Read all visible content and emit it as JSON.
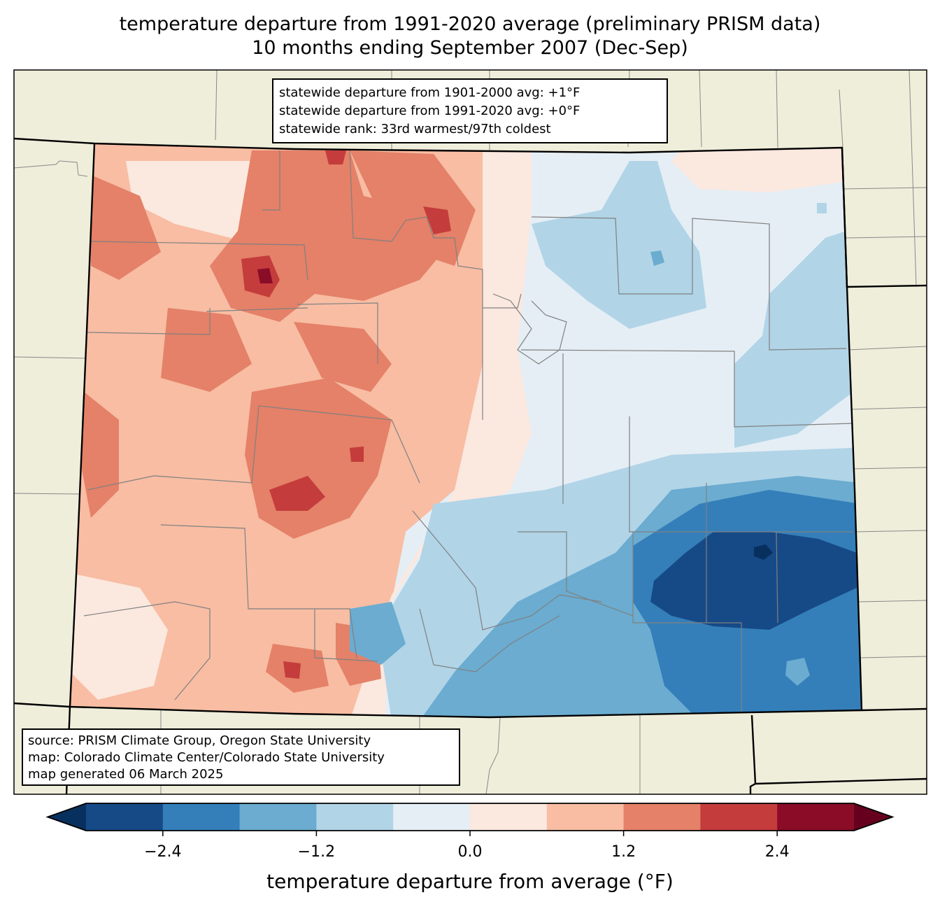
{
  "title": {
    "line1": "temperature departure from 1991-2020 average (preliminary PRISM data)",
    "line2": "10 months ending September 2007 (Dec-Sep)"
  },
  "stats_box": {
    "lines": [
      "statewide departure from 1901-2000 avg: +1°F",
      "statewide departure from 1991-2020 avg: +0°F",
      "statewide rank: 33rd warmest/97th coldest"
    ]
  },
  "source_box": {
    "lines": [
      "source: PRISM Climate Group, Oregon State University",
      "map: Colorado Climate Center/Colorado State University",
      "map generated 06 March 2025"
    ]
  },
  "map": {
    "region": "Colorado",
    "land_color": "#efeedb",
    "state_border_color": "#000000",
    "county_border_color": "#808080",
    "summary": {
      "warm_region": "western Colorado (mountains / western slope) mostly +0.6 to +1.8°F, pockets above +1.8°F",
      "cool_region": "eastern plains mostly 0 to -1.2°F, southeast below -2.4°F"
    }
  },
  "colorbar": {
    "label": "temperature departure from average (°F)",
    "boundaries": [
      -3.0,
      -2.4,
      -1.8,
      -1.2,
      -0.6,
      0.0,
      0.6,
      1.2,
      1.8,
      2.4,
      3.0
    ],
    "colors": [
      "#164a87",
      "#347fb9",
      "#6bacd0",
      "#b1d4e7",
      "#e5eef5",
      "#fbe8df",
      "#f8bda3",
      "#e48168",
      "#c43c3c",
      "#8a0c27"
    ],
    "extend_min_color": "#08305e",
    "extend_max_color": "#67001f",
    "ticks": [
      {
        "value": -2.4,
        "label": "−2.4"
      },
      {
        "value": -1.2,
        "label": "−1.2"
      },
      {
        "value": 0.0,
        "label": "0.0"
      },
      {
        "value": 1.2,
        "label": "1.2"
      },
      {
        "value": 2.4,
        "label": "2.4"
      }
    ]
  }
}
